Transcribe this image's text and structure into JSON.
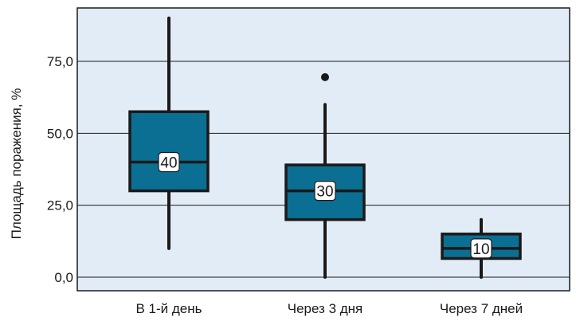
{
  "chart_data": {
    "type": "box",
    "ylabel": "Площадь поражения, %",
    "ylim": [
      0,
      90
    ],
    "yticks": [
      0,
      25,
      50,
      75
    ],
    "ytick_labels": [
      "0,0",
      "25,0",
      "50,0",
      "75,0"
    ],
    "grid": "horizontal",
    "categories": [
      "В 1-й день",
      "Через 3 дня",
      "Через 7 дней"
    ],
    "boxes": [
      {
        "category": "В 1-й день",
        "whisker_low": 10,
        "q1": 30,
        "median": 40,
        "q3": 57.5,
        "whisker_high": 90,
        "median_label": "40",
        "outliers": []
      },
      {
        "category": "Через 3 дня",
        "whisker_low": 0,
        "q1": 20,
        "median": 30,
        "q3": 39,
        "whisker_high": 60,
        "median_label": "30",
        "outliers": [
          69.5
        ]
      },
      {
        "category": "Через 7 дней",
        "whisker_low": 0,
        "q1": 6.5,
        "median": 10,
        "q3": 15,
        "whisker_high": 20,
        "median_label": "10",
        "outliers": []
      }
    ],
    "colors": {
      "plot_bg": "#e2ecf6",
      "box_fill": "#0a6f93",
      "stroke": "#1a1a1a",
      "grid": "#1a1a1a",
      "label_bg": "#ffffff"
    }
  }
}
